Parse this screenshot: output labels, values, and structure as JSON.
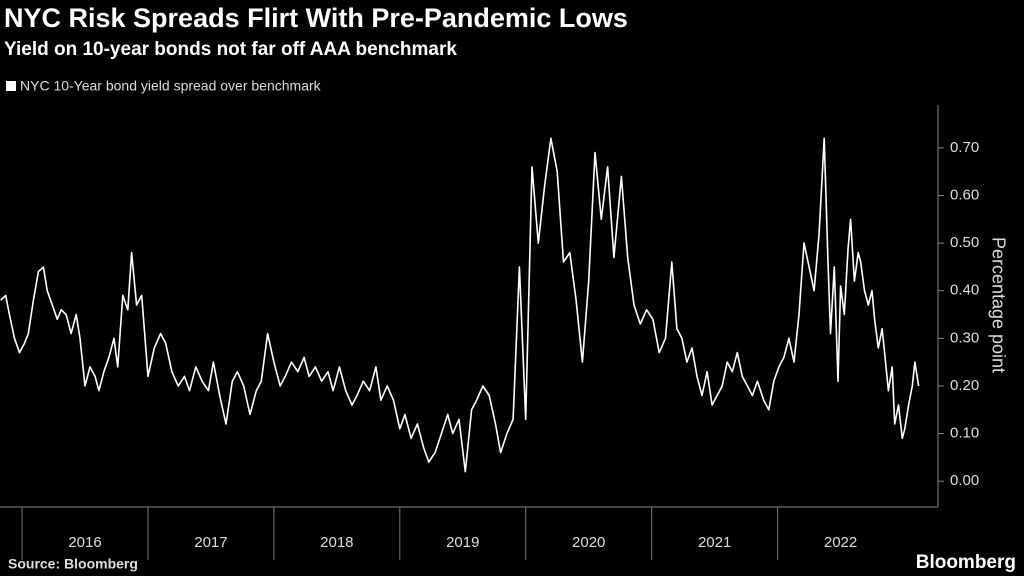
{
  "chart_data": {
    "type": "line",
    "title": "NYC Risk Spreads Flirt With Pre-Pandemic Lows",
    "subtitle": "Yield on 10-year bonds not far off AAA benchmark",
    "y_label": "Percentage point",
    "source": "Source: Bloomberg",
    "logo": "Bloomberg",
    "x": [
      2015.83,
      2015.87,
      2015.9,
      2015.94,
      2015.98,
      2016.02,
      2016.05,
      2016.09,
      2016.13,
      2016.17,
      2016.2,
      2016.24,
      2016.28,
      2016.31,
      2016.35,
      2016.39,
      2016.43,
      2016.46,
      2016.5,
      2016.54,
      2016.58,
      2016.61,
      2016.65,
      2016.69,
      2016.73,
      2016.76,
      2016.8,
      2016.84,
      2016.87,
      2016.91,
      2016.95,
      2017.0,
      2017.05,
      2017.1,
      2017.14,
      2017.19,
      2017.24,
      2017.29,
      2017.33,
      2017.38,
      2017.43,
      2017.48,
      2017.52,
      2017.57,
      2017.62,
      2017.67,
      2017.71,
      2017.76,
      2017.81,
      2017.86,
      2017.9,
      2017.95,
      2018.0,
      2018.05,
      2018.09,
      2018.14,
      2018.19,
      2018.24,
      2018.28,
      2018.33,
      2018.38,
      2018.43,
      2018.47,
      2018.52,
      2018.57,
      2018.62,
      2018.66,
      2018.71,
      2018.76,
      2018.81,
      2018.85,
      2018.9,
      2018.95,
      2019.0,
      2019.04,
      2019.09,
      2019.14,
      2019.19,
      2019.23,
      2019.28,
      2019.33,
      2019.38,
      2019.42,
      2019.47,
      2019.52,
      2019.57,
      2019.61,
      2019.66,
      2019.71,
      2019.76,
      2019.8,
      2019.85,
      2019.9,
      2019.95,
      2020.0,
      2020.05,
      2020.1,
      2020.15,
      2020.2,
      2020.25,
      2020.3,
      2020.35,
      2020.4,
      2020.45,
      2020.5,
      2020.55,
      2020.6,
      2020.65,
      2020.7,
      2020.76,
      2020.81,
      2020.86,
      2020.91,
      2020.96,
      2021.01,
      2021.06,
      2021.11,
      2021.16,
      2021.2,
      2021.24,
      2021.28,
      2021.32,
      2021.36,
      2021.4,
      2021.44,
      2021.48,
      2021.52,
      2021.56,
      2021.6,
      2021.64,
      2021.68,
      2021.72,
      2021.76,
      2021.8,
      2021.84,
      2021.89,
      2021.93,
      2021.97,
      2022.01,
      2022.05,
      2022.09,
      2022.13,
      2022.17,
      2022.21,
      2022.25,
      2022.29,
      2022.33,
      2022.37,
      2022.4,
      2022.42,
      2022.45,
      2022.48,
      2022.5,
      2022.53,
      2022.56,
      2022.58,
      2022.61,
      2022.64,
      2022.66,
      2022.69,
      2022.72,
      2022.75,
      2022.77,
      2022.8,
      2022.83,
      2022.85,
      2022.88,
      2022.91,
      2022.93,
      2022.96,
      2022.99,
      2023.01,
      2023.04,
      2023.07,
      2023.09,
      2023.12
    ],
    "series": [
      {
        "name": "NYC 10-Year bond yield spread over benchmark",
        "color": "#ffffff",
        "values": [
          0.38,
          0.39,
          0.35,
          0.3,
          0.27,
          0.29,
          0.31,
          0.38,
          0.44,
          0.45,
          0.4,
          0.37,
          0.34,
          0.36,
          0.35,
          0.31,
          0.35,
          0.3,
          0.2,
          0.24,
          0.22,
          0.19,
          0.23,
          0.26,
          0.3,
          0.24,
          0.39,
          0.36,
          0.48,
          0.37,
          0.39,
          0.22,
          0.28,
          0.31,
          0.29,
          0.23,
          0.2,
          0.22,
          0.19,
          0.24,
          0.21,
          0.19,
          0.25,
          0.18,
          0.12,
          0.21,
          0.23,
          0.2,
          0.14,
          0.19,
          0.21,
          0.31,
          0.25,
          0.2,
          0.22,
          0.25,
          0.23,
          0.26,
          0.22,
          0.24,
          0.21,
          0.23,
          0.19,
          0.24,
          0.19,
          0.16,
          0.18,
          0.21,
          0.19,
          0.24,
          0.17,
          0.2,
          0.17,
          0.11,
          0.14,
          0.09,
          0.12,
          0.07,
          0.04,
          0.06,
          0.1,
          0.14,
          0.1,
          0.13,
          0.02,
          0.15,
          0.17,
          0.2,
          0.18,
          0.12,
          0.06,
          0.1,
          0.13,
          0.45,
          0.13,
          0.66,
          0.5,
          0.62,
          0.72,
          0.65,
          0.46,
          0.48,
          0.38,
          0.25,
          0.42,
          0.69,
          0.55,
          0.66,
          0.47,
          0.64,
          0.47,
          0.37,
          0.33,
          0.36,
          0.34,
          0.27,
          0.3,
          0.46,
          0.32,
          0.3,
          0.25,
          0.28,
          0.22,
          0.18,
          0.23,
          0.16,
          0.18,
          0.2,
          0.25,
          0.23,
          0.27,
          0.22,
          0.2,
          0.18,
          0.21,
          0.17,
          0.15,
          0.21,
          0.24,
          0.26,
          0.3,
          0.25,
          0.35,
          0.5,
          0.45,
          0.4,
          0.52,
          0.72,
          0.46,
          0.31,
          0.45,
          0.21,
          0.41,
          0.35,
          0.49,
          0.55,
          0.42,
          0.48,
          0.46,
          0.4,
          0.37,
          0.4,
          0.34,
          0.28,
          0.32,
          0.27,
          0.19,
          0.24,
          0.12,
          0.16,
          0.09,
          0.11,
          0.16,
          0.2,
          0.25,
          0.2
        ]
      }
    ],
    "xlim": [
      2015.825,
      2023.25
    ],
    "xticks": [
      2016,
      2017,
      2018,
      2019,
      2020,
      2021,
      2022
    ],
    "ylim": [
      -0.05,
      0.79
    ],
    "yticks": [
      {
        "value": 0,
        "label": "0.00"
      },
      {
        "value": 0.1,
        "label": "0.10"
      },
      {
        "value": 0.2,
        "label": "0.20"
      },
      {
        "value": 0.3,
        "label": "0.30"
      },
      {
        "value": 0.4,
        "label": "0.40"
      },
      {
        "value": 0.5,
        "label": "0.50"
      },
      {
        "value": 0.6,
        "label": "0.60"
      },
      {
        "value": 0.7,
        "label": "0.70"
      }
    ],
    "legend": "top-left"
  }
}
